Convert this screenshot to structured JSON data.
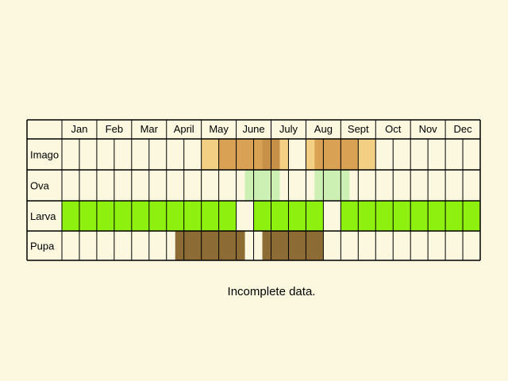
{
  "caption": "Incomplete data.",
  "months": [
    "Jan",
    "Feb",
    "Mar",
    "April",
    "May",
    "June",
    "July",
    "Aug",
    "Sept",
    "Oct",
    "Nov",
    "Dec"
  ],
  "stages": [
    {
      "label": "Imago",
      "periods": [
        {
          "start": 8,
          "end": 13,
          "color": "#f2cf82"
        },
        {
          "start": 9,
          "end": 11.5,
          "color": "#d8a154"
        },
        {
          "start": 11.5,
          "end": 12.5,
          "color": "#c79049"
        },
        {
          "start": 14,
          "end": 18,
          "color": "#f2cf82"
        },
        {
          "start": 14.5,
          "end": 17,
          "color": "#d8a154"
        }
      ]
    },
    {
      "label": "Ova",
      "periods": [
        {
          "start": 10.5,
          "end": 12.5,
          "color": "#ccefb3"
        },
        {
          "start": 14.5,
          "end": 16.5,
          "color": "#ccefb3"
        }
      ]
    },
    {
      "label": "Larva",
      "periods": [
        {
          "start": 0,
          "end": 10,
          "color": "#8ef00f"
        },
        {
          "start": 11,
          "end": 15,
          "color": "#8ef00f"
        },
        {
          "start": 16,
          "end": 24,
          "color": "#8ef00f"
        }
      ]
    },
    {
      "label": "Pupa",
      "periods": [
        {
          "start": 6.5,
          "end": 10.5,
          "color": "#8c6c34"
        },
        {
          "start": 11.5,
          "end": 15,
          "color": "#8c6c34"
        }
      ]
    }
  ]
}
